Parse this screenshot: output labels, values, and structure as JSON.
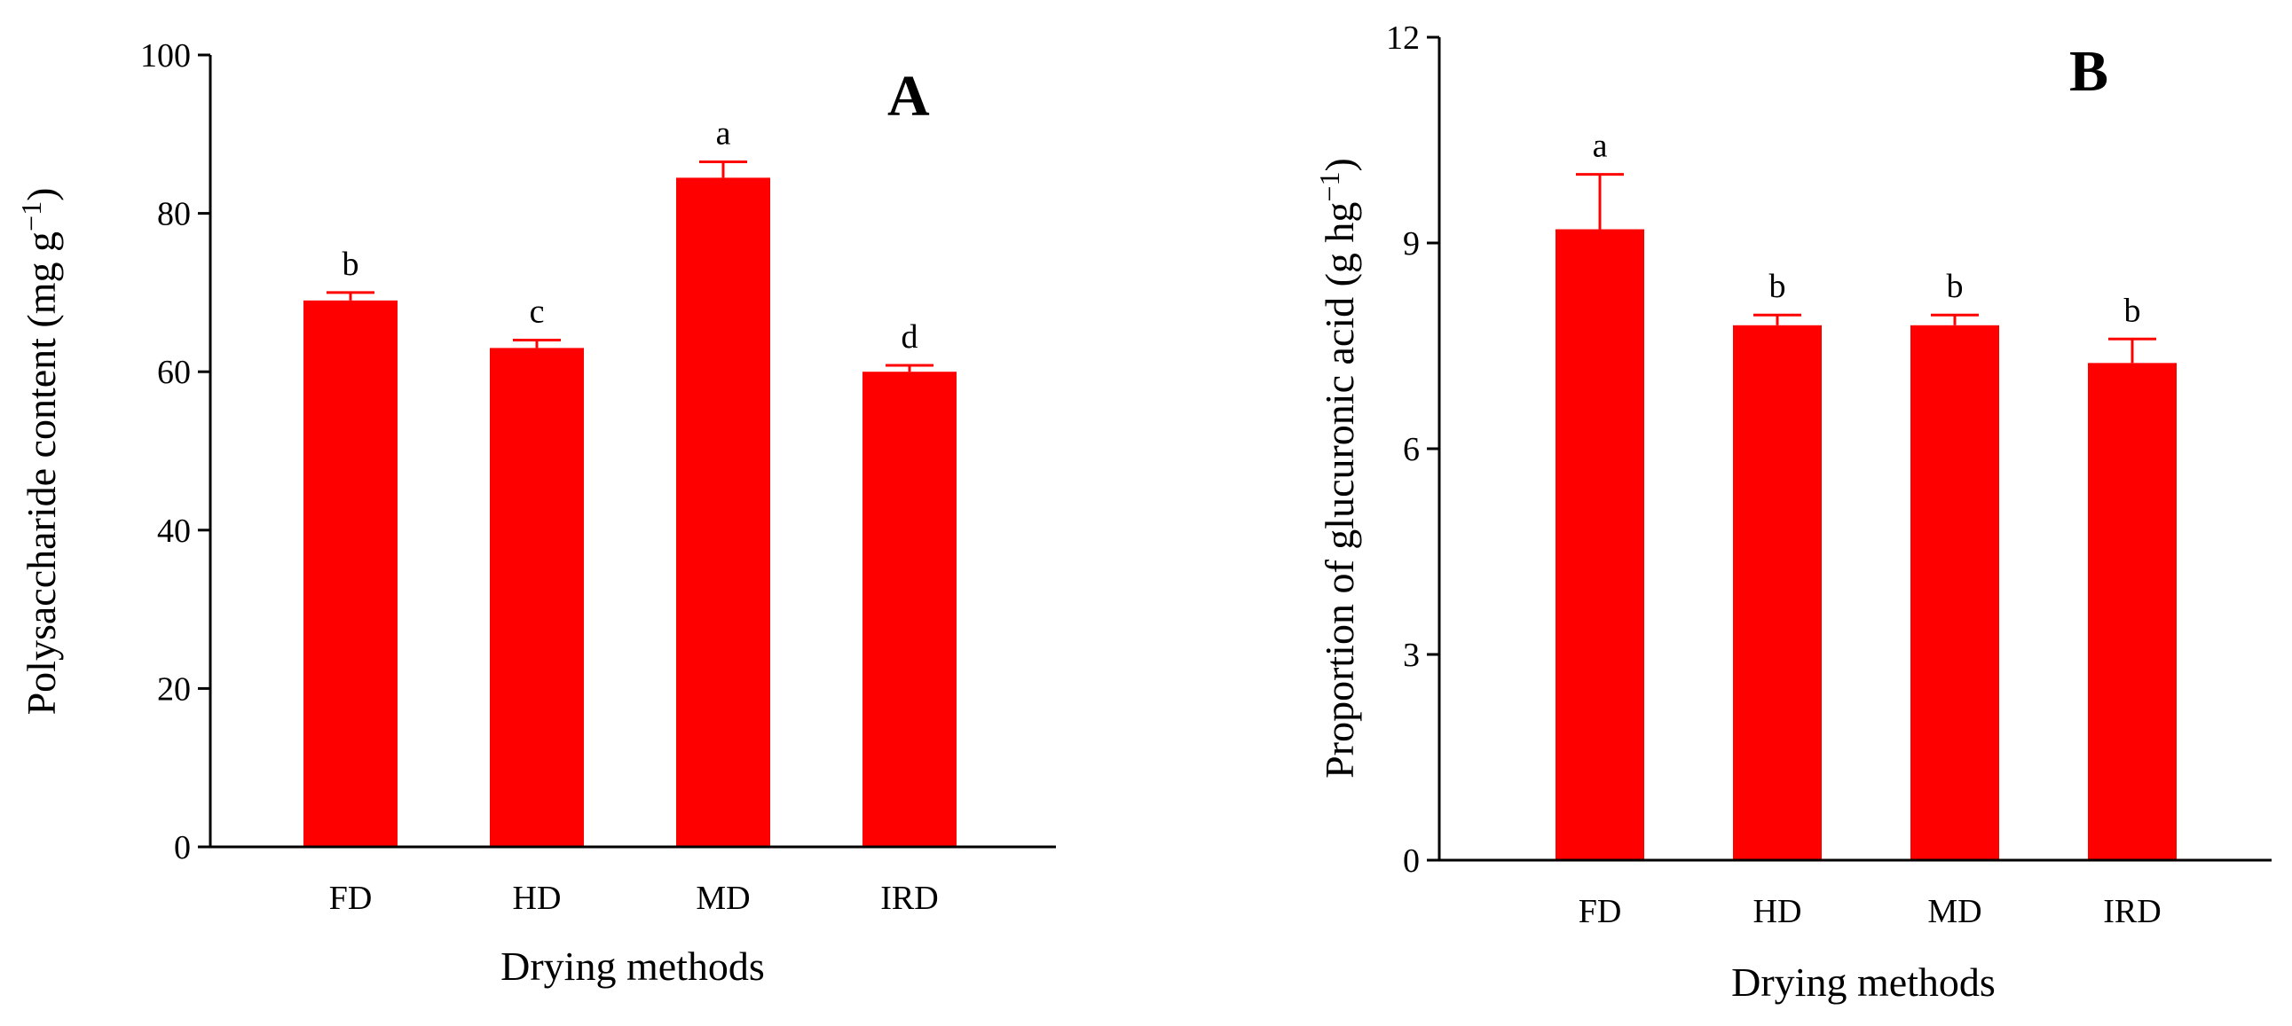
{
  "chart_data": [
    {
      "panel_label": "A",
      "type": "bar",
      "categories": [
        "FD",
        "HD",
        "MD",
        "IRD"
      ],
      "values": [
        69,
        63,
        84.5,
        60
      ],
      "errors": [
        1,
        1,
        2,
        0.8
      ],
      "significance": [
        "b",
        "c",
        "a",
        "d"
      ],
      "xlabel": "Drying methods",
      "ylabel": "Polysaccharide content (mg g",
      "ylabel_sup": "−1",
      "ylabel_end": ")",
      "ylim": [
        0,
        100
      ],
      "yticks": [
        "0",
        "20",
        "40",
        "60",
        "80",
        "100"
      ],
      "bar_color": "#FF0000",
      "grid": false
    },
    {
      "panel_label": "B",
      "type": "bar",
      "categories": [
        "FD",
        "HD",
        "MD",
        "IRD"
      ],
      "values": [
        9.2,
        7.8,
        7.8,
        7.25
      ],
      "errors": [
        0.8,
        0.15,
        0.15,
        0.35
      ],
      "significance": [
        "a",
        "b",
        "b",
        "b"
      ],
      "xlabel": "Drying methods",
      "ylabel": "Proportion of glucuronic acid (g hg",
      "ylabel_sup": "−1",
      "ylabel_end": ")",
      "ylim": [
        0,
        12
      ],
      "yticks": [
        "0",
        "3",
        "6",
        "9",
        "12"
      ],
      "bar_color": "#FF0000",
      "grid": false
    }
  ]
}
